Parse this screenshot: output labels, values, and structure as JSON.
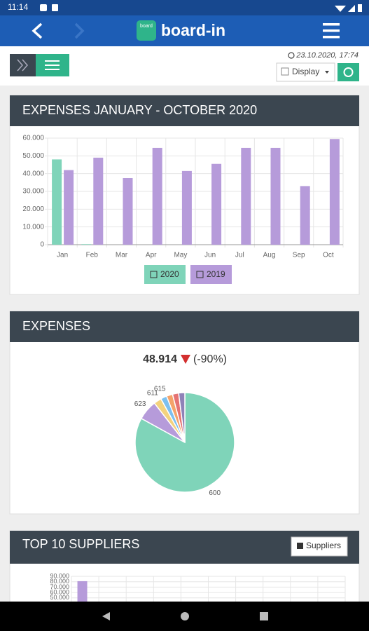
{
  "status_bar": {
    "time": "11:14"
  },
  "app_bar": {
    "logo_icon_text": "board",
    "logo_text": "board-in"
  },
  "toolbar": {
    "timestamp": "23.10.2020, 17:74",
    "display_button": "Display"
  },
  "expenses_summary": {
    "value": "48.914",
    "change": "(-90%)"
  },
  "suppliers_button": "Suppliers",
  "chart_data": [
    {
      "type": "bar",
      "title": "EXPENSES JANUARY - OCTOBER 2020",
      "categories": [
        "Jan",
        "Feb",
        "Mar",
        "Apr",
        "May",
        "Jun",
        "Jul",
        "Aug",
        "Sep",
        "Oct"
      ],
      "series": [
        {
          "name": "2020",
          "color": "#7fd4b9",
          "values": [
            48000,
            300,
            0,
            0,
            0,
            0,
            0,
            0,
            0,
            0
          ]
        },
        {
          "name": "2019",
          "color": "#b69bda",
          "values": [
            42000,
            49000,
            37500,
            54500,
            41500,
            45500,
            54500,
            54500,
            33000,
            59500
          ]
        }
      ],
      "ylim": [
        0,
        60000
      ],
      "yticks": [
        0,
        {
          "value": 10000,
          "label": "10.000"
        },
        {
          "value": 20000,
          "label": "20.000"
        },
        {
          "value": 30000,
          "label": "30.000"
        },
        {
          "value": 40000,
          "label": "40.000"
        },
        {
          "value": 50000,
          "label": "50.000"
        },
        {
          "value": 60000,
          "label": "60.000"
        }
      ],
      "grid": true
    },
    {
      "type": "pie",
      "title": "EXPENSES",
      "categories": [
        "600",
        "623",
        "611",
        "615",
        null,
        null,
        null
      ],
      "values": [
        83,
        6.5,
        2.5,
        2,
        2,
        2,
        2
      ],
      "colors": [
        "#7fd4b9",
        "#b69bda",
        "#f3d27e",
        "#7cc0ef",
        "#f4a36a",
        "#e57373",
        "#8e82b8"
      ]
    },
    {
      "type": "bar",
      "title": "TOP 10 SUPPLIERS",
      "values": [
        81000
      ],
      "color": "#b69bda",
      "ylim": [
        0,
        90000
      ],
      "yticks": [
        {
          "value": 50000,
          "label": "50.000"
        },
        {
          "value": 60000,
          "label": "60.000"
        },
        {
          "value": 70000,
          "label": "70.000"
        },
        {
          "value": 80000,
          "label": "80.000"
        },
        {
          "value": 90000,
          "label": "90.000"
        }
      ],
      "grid": true
    }
  ]
}
